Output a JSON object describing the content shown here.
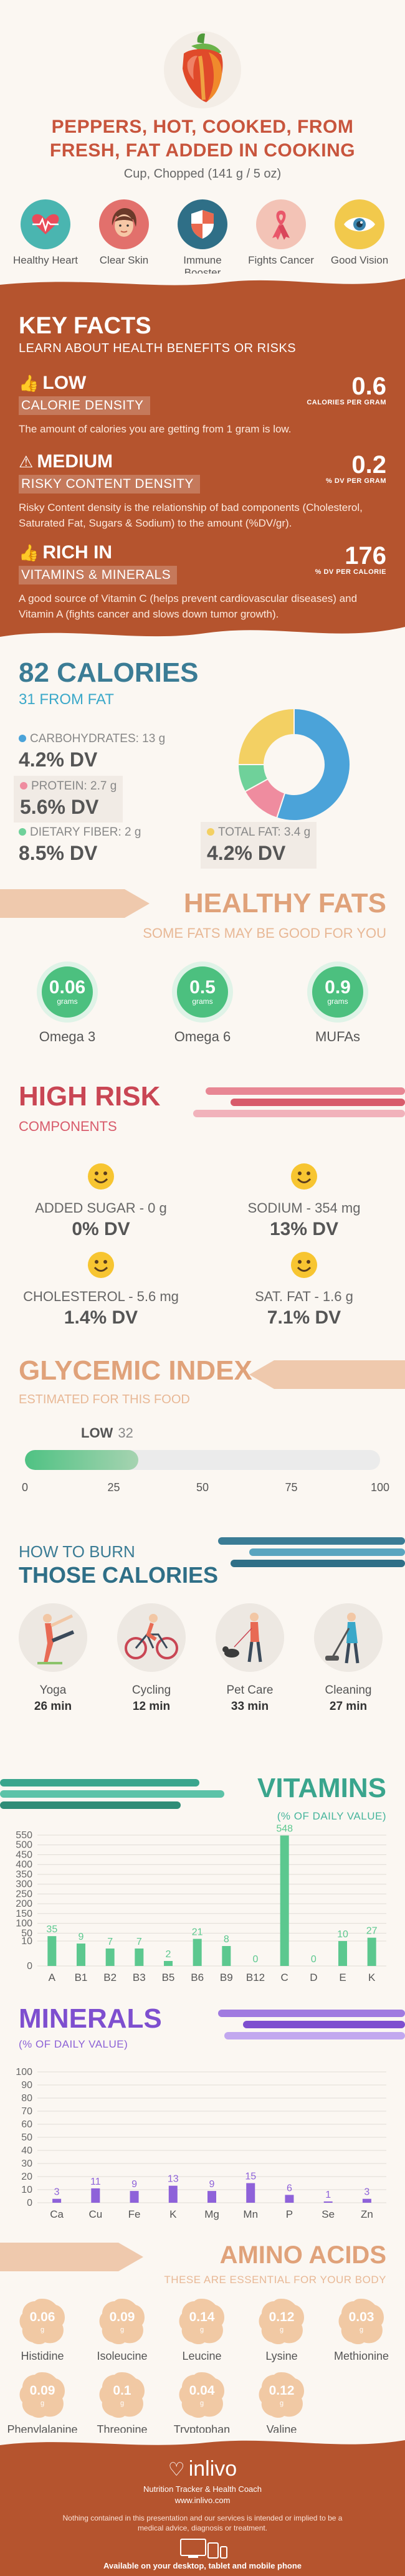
{
  "header": {
    "title": "PEPPERS, HOT, COOKED, FROM FRESH, FAT ADDED IN COOKING",
    "serving": "Cup, Chopped (141 g / 5 oz)",
    "benefits": [
      {
        "label": "Healthy Heart",
        "icon": "heart-rate-icon",
        "color": "#4ab5b0"
      },
      {
        "label": "Clear Skin",
        "icon": "face-icon",
        "color": "#e2706c"
      },
      {
        "label": "Immune Booster",
        "icon": "shield-icon",
        "color": "#2f6f87"
      },
      {
        "label": "Fights Cancer",
        "icon": "ribbon-icon",
        "color": "#f3c3b6"
      },
      {
        "label": "Good Vision",
        "icon": "eye-icon",
        "color": "#f2c94c"
      }
    ]
  },
  "key_facts": {
    "title": "KEY FACTS",
    "subtitle": "LEARN ABOUT HEALTH BENEFITS OR RISKS",
    "items": [
      {
        "level": "LOW",
        "label": "CALORIE DENSITY",
        "desc": "The amount of calories you are getting from 1 gram is low.",
        "value": "0.6",
        "unit": "CALORIES PER GRAM",
        "icon": "thumbs-up-icon"
      },
      {
        "level": "MEDIUM",
        "label": "RISKY CONTENT DENSITY",
        "desc": "Risky Content density is the relationship of bad components (Cholesterol, Saturated Fat, Sugars & Sodium) to the amount (%DV/gr).",
        "value": "0.2",
        "unit": "% DV PER GRAM",
        "icon": "warning-icon"
      },
      {
        "level": "RICH IN",
        "label": "VITAMINS & MINERALS",
        "desc": "A good source of Vitamin C (helps prevent cardiovascular diseases) and Vitamin A (fights cancer and slows down tumor growth).",
        "value": "176",
        "unit": "% DV PER CALORIE",
        "icon": "thumbs-up-icon"
      }
    ]
  },
  "calories": {
    "title": "82 CALORIES",
    "from_fat": "31 FROM FAT",
    "macros": [
      {
        "name": "CARBOHYDRATES: 13 g",
        "dv": "4.2% DV",
        "color": "#4ba3d9"
      },
      {
        "name": "PROTEIN: 2.7 g",
        "dv": "5.6% DV",
        "color": "#ef8c9f"
      },
      {
        "name": "DIETARY FIBER: 2 g",
        "dv": "8.5% DV",
        "color": "#6fd19a"
      },
      {
        "name": "TOTAL FAT: 3.4 g",
        "dv": "4.2% DV",
        "color": "#f3d063"
      }
    ],
    "chart_data": {
      "type": "pie",
      "categories": [
        "Carbohydrates",
        "Protein",
        "Fiber",
        "Fat"
      ],
      "values": [
        55,
        12,
        8,
        25
      ],
      "colors": [
        "#4ba3d9",
        "#ef8c9f",
        "#6fd19a",
        "#f3d063"
      ]
    }
  },
  "healthy_fats": {
    "title": "HEALTHY FATS",
    "subtitle": "SOME FATS MAY BE GOOD FOR YOU",
    "items": [
      {
        "value": "0.06",
        "unit": "grams",
        "name": "Omega 3"
      },
      {
        "value": "0.5",
        "unit": "grams",
        "name": "Omega 6"
      },
      {
        "value": "0.9",
        "unit": "grams",
        "name": "MUFAs"
      }
    ]
  },
  "high_risk": {
    "title": "HIGH RISK",
    "subtitle": "COMPONENTS",
    "items": [
      {
        "name": "ADDED SUGAR - 0 g",
        "dv": "0% DV"
      },
      {
        "name": "SODIUM - 354 mg",
        "dv": "13% DV"
      },
      {
        "name": "CHOLESTEROL - 5.6 mg",
        "dv": "1.4% DV"
      },
      {
        "name": "SAT. FAT - 1.6 g",
        "dv": "7.1% DV"
      }
    ]
  },
  "glycemic": {
    "title": "GLYCEMIC INDEX",
    "subtitle": "ESTIMATED FOR THIS FOOD",
    "level": "LOW",
    "value": 32,
    "value_label": "32",
    "ticks": [
      "0",
      "25",
      "50",
      "75",
      "100"
    ]
  },
  "burn": {
    "title_top": "HOW TO BURN",
    "title_bottom": "THOSE CALORIES",
    "activities": [
      {
        "name": "Yoga",
        "minutes": "26 min",
        "icon": "yoga-icon"
      },
      {
        "name": "Cycling",
        "minutes": "12 min",
        "icon": "cycling-icon"
      },
      {
        "name": "Pet Care",
        "minutes": "33 min",
        "icon": "dog-walking-icon"
      },
      {
        "name": "Cleaning",
        "minutes": "27 min",
        "icon": "vacuum-icon"
      }
    ]
  },
  "vitamins": {
    "title": "VITAMINS",
    "subtitle": "(% OF DAILY VALUE)",
    "chart_data": {
      "type": "bar",
      "categories": [
        "A",
        "B1",
        "B2",
        "B3",
        "B5",
        "B6",
        "B9",
        "B12",
        "C",
        "D",
        "E",
        "K"
      ],
      "values": [
        35,
        9,
        7,
        7,
        2,
        21,
        8,
        0,
        548,
        0,
        10,
        27
      ],
      "value_labels": [
        "35",
        "9",
        "7",
        "7",
        "2",
        "21",
        "8",
        "0",
        "548",
        "0",
        "10",
        "27"
      ],
      "yticks": [
        0,
        10,
        50,
        100,
        150,
        200,
        250,
        300,
        350,
        400,
        450,
        500,
        550
      ],
      "ytick_labels": [
        "0",
        "10",
        "50",
        "100",
        "150",
        "200",
        "250",
        "300",
        "350",
        "400",
        "450",
        "500",
        "550"
      ],
      "ylim": [
        0,
        550
      ],
      "color": "#5cc88f"
    }
  },
  "minerals": {
    "title": "MINERALS",
    "subtitle": "(% OF DAILY VALUE)",
    "chart_data": {
      "type": "bar",
      "categories": [
        "Ca",
        "Cu",
        "Fe",
        "K",
        "Mg",
        "Mn",
        "P",
        "Se",
        "Zn"
      ],
      "values": [
        3,
        11,
        9,
        13,
        9,
        15,
        6,
        1,
        3
      ],
      "value_labels": [
        "3",
        "11",
        "9",
        "13",
        "9",
        "15",
        "6",
        "1",
        "3"
      ],
      "yticks": [
        0,
        10,
        20,
        30,
        40,
        50,
        60,
        70,
        80,
        90,
        100
      ],
      "ytick_labels": [
        "0",
        "10",
        "20",
        "30",
        "40",
        "50",
        "60",
        "70",
        "80",
        "90",
        "100"
      ],
      "ylim": [
        0,
        100
      ],
      "color": "#8e62d9"
    }
  },
  "amino": {
    "title": "AMINO ACIDS",
    "subtitle": "THESE ARE ESSENTIAL FOR YOUR BODY",
    "items": [
      {
        "value": "0.06",
        "unit": "g",
        "name": "Histidine"
      },
      {
        "value": "0.09",
        "unit": "g",
        "name": "Isoleucine"
      },
      {
        "value": "0.14",
        "unit": "g",
        "name": "Leucine"
      },
      {
        "value": "0.12",
        "unit": "g",
        "name": "Lysine"
      },
      {
        "value": "0.03",
        "unit": "g",
        "name": "Methionine"
      },
      {
        "value": "0.09",
        "unit": "g",
        "name": "Phenylalanine"
      },
      {
        "value": "0.1",
        "unit": "g",
        "name": "Threonine"
      },
      {
        "value": "0.04",
        "unit": "g",
        "name": "Tryptophan"
      },
      {
        "value": "0.12",
        "unit": "g",
        "name": "Valine"
      }
    ]
  },
  "footer": {
    "logo": "inlivo",
    "tagline": "Nutrition Tracker & Health Coach",
    "url": "www.inlivo.com",
    "disclaimer": "Nothing contained in this presentation and our services is intended or implied to be a medical advice, diagnosis or treatment.",
    "available": "Available on your desktop, tablet and mobile phone"
  }
}
